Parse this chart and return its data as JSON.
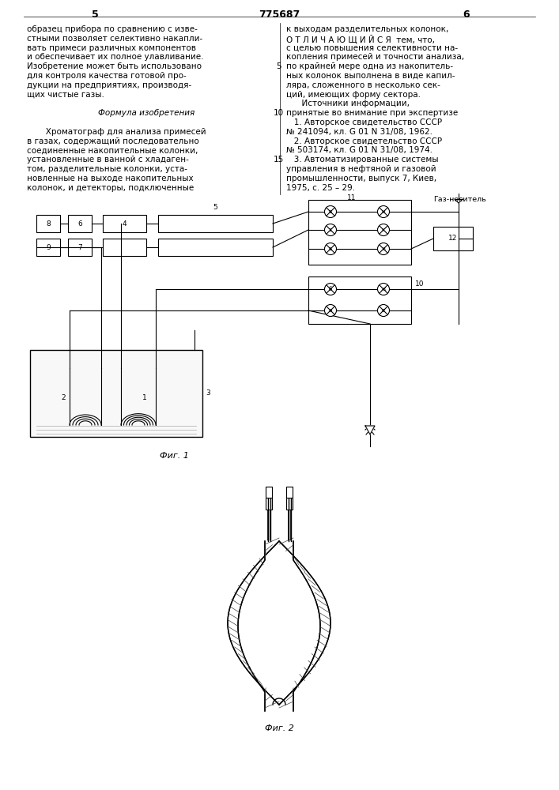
{
  "page_width": 7.07,
  "page_height": 10.0,
  "bg_color": "#ffffff",
  "text_color": "#000000",
  "line_color": "#000000",
  "col1_text": [
    "образец прибора по сравнению с изве-",
    "стными позволяет селективно накапли-",
    "вать примеси различных компонентов",
    "и обеспечивает их полное улавливание.",
    "Изобретение может быть использовано",
    "для контроля качества готовой про-",
    "дукции на предприятиях, производя-",
    "щих чистые газы.",
    "",
    "Формула изобретения",
    "",
    "   Хроматограф для анализа примесей",
    "в газах, содержащий последовательно",
    "соединенные накопительные колонки,",
    "установленные в ванной с хладаген-",
    "том, разделительные колонки, уста-",
    "новленные на выходе накопительных",
    "колонок, и детекторы, подключенные"
  ],
  "col2_text": [
    "к выходам разделительных колонок,",
    "О Т Л И Ч А Ю Щ И Й С Я  тем, что,",
    "с целью повышения селективности на-",
    "копления примесей и точности анализа,",
    "по крайней мере одна из накопитель-",
    "ных колонок выполнена в виде капил-",
    "ляра, сложенного в несколько сек-",
    "ций, имеющих форму сектора.",
    "      Источники информации,",
    "принятые во внимание при экспертизе",
    "   1. Авторское свидетельство СССР",
    "№ 241094, кл. G 01 N 31/08, 1962.",
    "   2. Авторское свидетельство СССР",
    "№ 503174, кл. G 01 N 31/08, 1974.",
    "   3. Автоматизированные системы",
    "управления в нефтяной и газовой",
    "промышленности, выпуск 7, Киев,",
    "1975, с. 25 – 29."
  ],
  "fig1_caption": "Фиг. 1",
  "fig2_caption": "Фиг. 2"
}
